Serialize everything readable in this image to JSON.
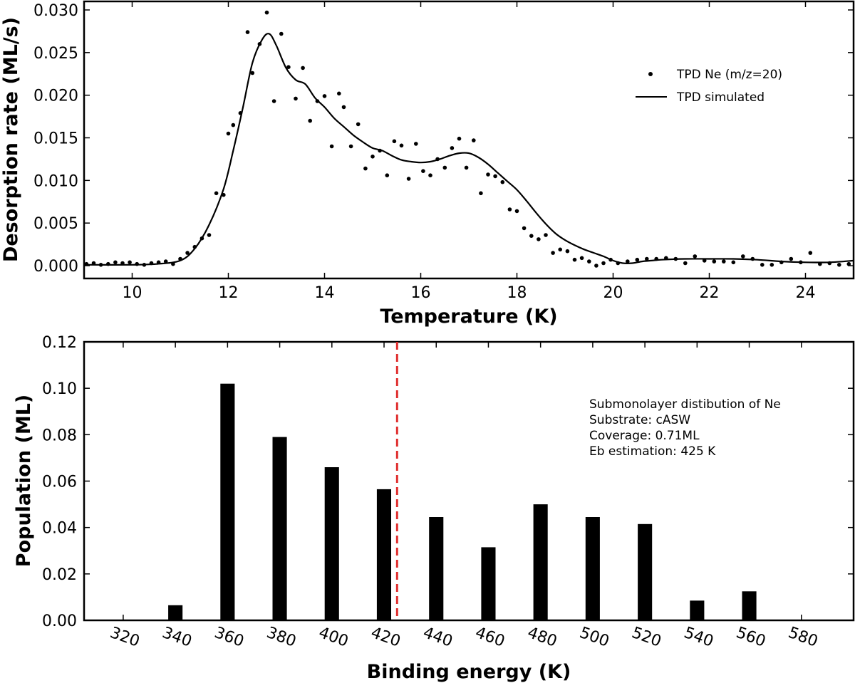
{
  "chart_data": [
    {
      "type": "scatter+line",
      "title": "",
      "xlabel": "Temperature (K)",
      "ylabel": "Desorption rate (ML/s)",
      "xlim": [
        9,
        25
      ],
      "ylim": [
        -0.0015,
        0.031
      ],
      "xticks": [
        10,
        12,
        14,
        16,
        18,
        20,
        22,
        24
      ],
      "xtick_labels": [
        "10",
        "12",
        "14",
        "16",
        "18",
        "20",
        "22",
        "24"
      ],
      "yticks": [
        0.0,
        0.005,
        0.01,
        0.015,
        0.02,
        0.025,
        0.03
      ],
      "ytick_labels": [
        "0.000",
        "0.005",
        "0.010",
        "0.015",
        "0.020",
        "0.025",
        "0.030"
      ],
      "legend": {
        "position": "right",
        "entries": [
          {
            "label": "TPD Ne (m/z=20)",
            "marker": "dot"
          },
          {
            "label": "TPD simulated",
            "marker": "line"
          }
        ]
      },
      "series": [
        {
          "name": "TPD Ne (m/z=20)",
          "kind": "scatter",
          "x": [
            9.05,
            9.2,
            9.35,
            9.5,
            9.65,
            9.8,
            9.95,
            10.1,
            10.25,
            10.4,
            10.55,
            10.7,
            10.85,
            11.0,
            11.15,
            11.3,
            11.45,
            11.6,
            11.75,
            11.9,
            12.0,
            12.1,
            12.25,
            12.4,
            12.5,
            12.65,
            12.8,
            12.95,
            13.1,
            13.25,
            13.4,
            13.55,
            13.7,
            13.85,
            14.0,
            14.15,
            14.3,
            14.4,
            14.55,
            14.7,
            14.85,
            15.0,
            15.15,
            15.3,
            15.45,
            15.6,
            15.75,
            15.9,
            16.05,
            16.2,
            16.35,
            16.5,
            16.65,
            16.8,
            16.95,
            17.1,
            17.25,
            17.4,
            17.55,
            17.7,
            17.85,
            18.0,
            18.15,
            18.3,
            18.45,
            18.6,
            18.75,
            18.9,
            19.05,
            19.2,
            19.35,
            19.5,
            19.65,
            19.8,
            19.95,
            20.1,
            20.3,
            20.5,
            20.7,
            20.9,
            21.1,
            21.3,
            21.5,
            21.7,
            21.9,
            22.1,
            22.3,
            22.5,
            22.7,
            22.9,
            23.1,
            23.3,
            23.5,
            23.7,
            23.9,
            24.1,
            24.3,
            24.5,
            24.7,
            24.9
          ],
          "y": [
            0.0002,
            0.0003,
            0.0001,
            0.0002,
            0.0004,
            0.0003,
            0.0004,
            0.0002,
            0.0001,
            0.0003,
            0.0004,
            0.0005,
            0.0002,
            0.0008,
            0.0015,
            0.0022,
            0.0032,
            0.0036,
            0.0085,
            0.0083,
            0.0155,
            0.0165,
            0.0179,
            0.0274,
            0.0226,
            0.026,
            0.0297,
            0.0193,
            0.0272,
            0.0233,
            0.0196,
            0.0232,
            0.017,
            0.0193,
            0.0199,
            0.014,
            0.0202,
            0.0186,
            0.014,
            0.0166,
            0.0114,
            0.0128,
            0.0135,
            0.0106,
            0.0146,
            0.0141,
            0.0102,
            0.0143,
            0.0111,
            0.0106,
            0.0125,
            0.0115,
            0.0138,
            0.0149,
            0.0115,
            0.0147,
            0.0085,
            0.0107,
            0.0105,
            0.0098,
            0.0066,
            0.0064,
            0.0044,
            0.0035,
            0.0031,
            0.0036,
            0.0015,
            0.0019,
            0.0017,
            0.0007,
            0.0009,
            0.0005,
            0.0,
            0.0003,
            0.0007,
            0.0003,
            0.0005,
            0.0007,
            0.0008,
            0.0008,
            0.0009,
            0.0008,
            0.0003,
            0.0011,
            0.0006,
            0.0005,
            0.0005,
            0.0004,
            0.0011,
            0.0008,
            0.0001,
            0.0001,
            0.0004,
            0.0008,
            0.0004,
            0.0015,
            0.0002,
            0.0003,
            0.0001,
            0.0002
          ]
        },
        {
          "name": "TPD simulated",
          "kind": "line",
          "x": [
            9.0,
            10.0,
            10.5,
            11.0,
            11.3,
            11.6,
            11.9,
            12.1,
            12.3,
            12.5,
            12.7,
            12.85,
            13.0,
            13.2,
            13.4,
            13.6,
            13.8,
            14.0,
            14.2,
            14.4,
            14.6,
            14.8,
            15.0,
            15.2,
            15.4,
            15.6,
            15.8,
            16.0,
            16.2,
            16.4,
            16.6,
            16.8,
            17.0,
            17.2,
            17.4,
            17.6,
            17.8,
            18.0,
            18.2,
            18.4,
            18.6,
            18.8,
            19.0,
            19.2,
            19.4,
            19.6,
            19.8,
            20.0,
            20.2,
            20.4,
            20.6,
            20.8,
            21.0,
            21.5,
            22.0,
            22.5,
            23.0,
            23.5,
            24.0,
            24.5,
            25.0
          ],
          "y": [
            0.0001,
            0.0001,
            0.0002,
            0.0006,
            0.002,
            0.0048,
            0.009,
            0.0135,
            0.0185,
            0.0238,
            0.0265,
            0.0272,
            0.0258,
            0.0232,
            0.0218,
            0.0213,
            0.0197,
            0.0186,
            0.0173,
            0.0163,
            0.0153,
            0.0145,
            0.0138,
            0.0135,
            0.0129,
            0.0124,
            0.0122,
            0.0121,
            0.0122,
            0.0125,
            0.0129,
            0.0132,
            0.0132,
            0.0127,
            0.0119,
            0.0109,
            0.0099,
            0.0089,
            0.0076,
            0.0062,
            0.0049,
            0.0038,
            0.003,
            0.0024,
            0.0019,
            0.0015,
            0.0011,
            0.0006,
            0.0003,
            0.0003,
            0.0005,
            0.0006,
            0.0007,
            0.0008,
            0.0008,
            0.0008,
            0.0007,
            0.0005,
            0.0004,
            0.0004,
            0.0006
          ]
        }
      ]
    },
    {
      "type": "bar",
      "title": "",
      "xlabel": "Binding energy (K)",
      "ylabel": "Population (ML)",
      "xlim": [
        305,
        600
      ],
      "ylim": [
        0,
        0.12
      ],
      "bar_width": 5.5,
      "xticks": [
        320,
        340,
        360,
        380,
        400,
        420,
        440,
        460,
        480,
        500,
        520,
        540,
        560,
        580
      ],
      "xtick_labels": [
        "320",
        "340",
        "360",
        "380",
        "400",
        "420",
        "440",
        "460",
        "480",
        "500",
        "520",
        "540",
        "560",
        "580"
      ],
      "xtick_rotation_deg": 20,
      "yticks": [
        0.0,
        0.02,
        0.04,
        0.06,
        0.08,
        0.1,
        0.12
      ],
      "ytick_labels": [
        "0.00",
        "0.02",
        "0.04",
        "0.06",
        "0.08",
        "0.10",
        "0.12"
      ],
      "categories": [
        340,
        360,
        380,
        400,
        420,
        440,
        460,
        480,
        500,
        520,
        540,
        560
      ],
      "values": [
        0.0065,
        0.102,
        0.079,
        0.066,
        0.0565,
        0.0445,
        0.0315,
        0.05,
        0.0445,
        0.0415,
        0.0085,
        0.0125
      ],
      "reference_line": {
        "x": 425,
        "color": "#e03030",
        "style": "dashed"
      },
      "annotation": [
        "Submonolayer distibution of Ne",
        "Substrate: cASW",
        "Coverage: 0.71ML",
        "Eb estimation: 425 K"
      ]
    }
  ]
}
